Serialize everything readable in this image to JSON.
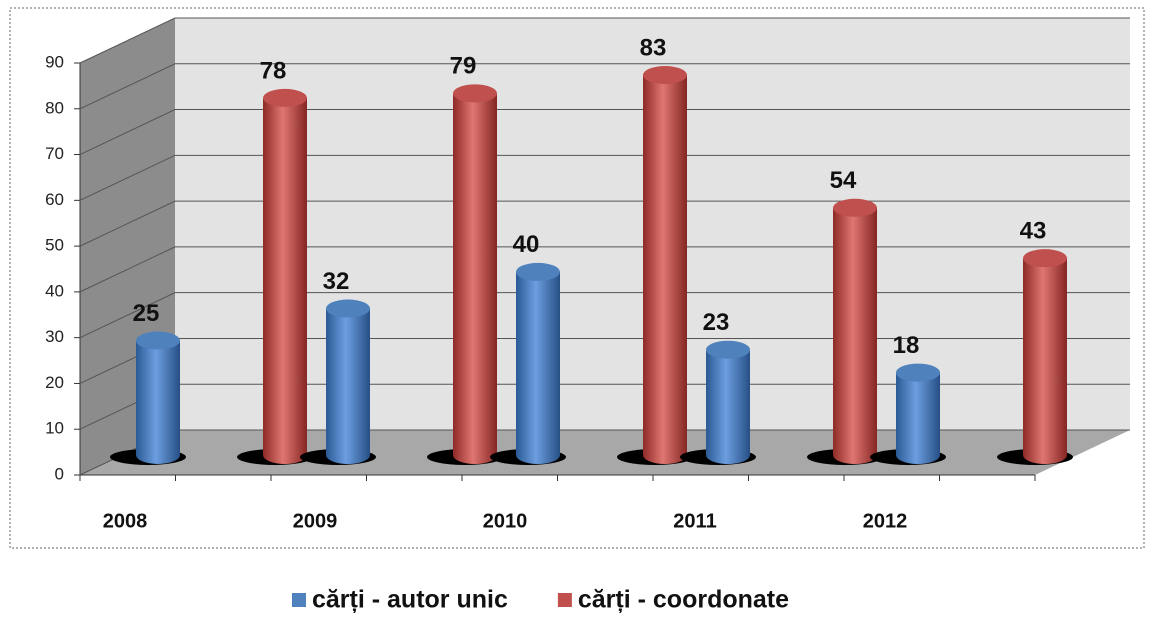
{
  "chart_data": {
    "type": "bar3d",
    "categories": [
      "2008",
      "2009",
      "2010",
      "2011",
      "2012",
      null
    ],
    "series": [
      {
        "name": "cărți - autor unic",
        "color": "#4f81bd",
        "values": [
          25,
          32,
          40,
          23,
          18,
          null
        ]
      },
      {
        "name": "cărți - coordonate",
        "color": "#c0504d",
        "values": [
          null,
          78,
          79,
          83,
          54,
          43
        ]
      }
    ],
    "ylim": [
      0,
      90
    ],
    "yticks": [
      0,
      10,
      20,
      30,
      40,
      50,
      60,
      70,
      80,
      90
    ],
    "grid": true,
    "legend": "bottom"
  }
}
